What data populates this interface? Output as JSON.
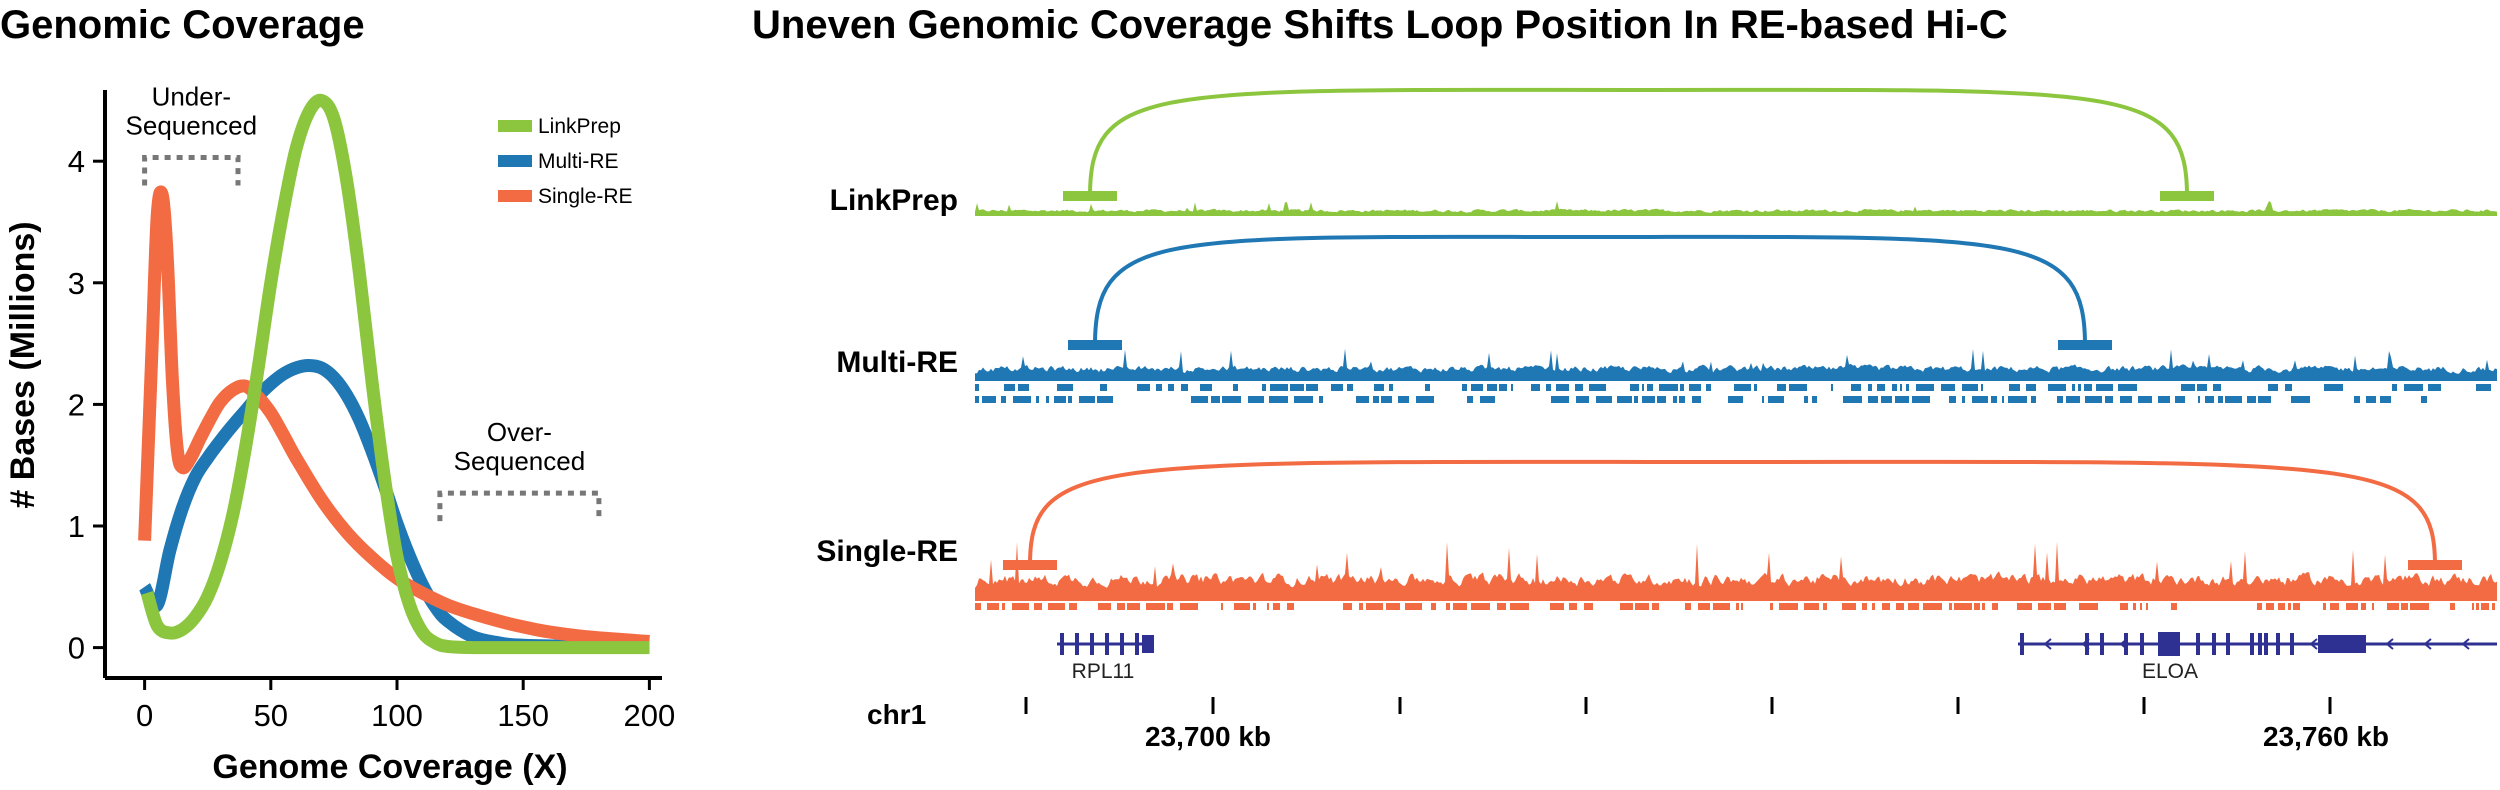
{
  "colors": {
    "linkprep": "#8cc63f",
    "multi_re": "#1f77b4",
    "single_re": "#f26b43",
    "gene": "#2e3192",
    "annotation": "#777777"
  },
  "chart_data": [
    {
      "type": "line",
      "title": "Genomic Coverage",
      "xlabel": "Genome Coverage (X)",
      "ylabel": "# Bases (Millions)",
      "xlim": [
        -5,
        205
      ],
      "ylim": [
        -0.25,
        4.75
      ],
      "xticks": [
        0,
        50,
        100,
        150,
        200
      ],
      "yticks": [
        0,
        1,
        2,
        3,
        4
      ],
      "legend_position": "top-right",
      "series": [
        {
          "name": "LinkPrep",
          "color_key": "linkprep",
          "x": [
            1,
            5,
            10,
            15,
            20,
            25,
            30,
            35,
            40,
            45,
            50,
            55,
            60,
            65,
            70,
            75,
            80,
            85,
            90,
            95,
            100,
            105,
            110,
            115,
            120,
            130,
            140,
            150,
            175,
            200
          ],
          "y": [
            0.45,
            0.18,
            0.12,
            0.15,
            0.25,
            0.42,
            0.7,
            1.1,
            1.65,
            2.3,
            3.0,
            3.6,
            4.1,
            4.4,
            4.5,
            4.35,
            3.85,
            3.1,
            2.2,
            1.4,
            0.75,
            0.35,
            0.13,
            0.04,
            0.01,
            0.0,
            0.0,
            0.0,
            0.0,
            0.0
          ]
        },
        {
          "name": "Multi-RE",
          "color_key": "multi_re",
          "x": [
            0,
            5,
            10,
            15,
            20,
            25,
            30,
            35,
            40,
            45,
            50,
            55,
            60,
            65,
            70,
            75,
            80,
            85,
            90,
            95,
            100,
            105,
            110,
            115,
            120,
            130,
            140,
            150,
            175,
            200
          ],
          "y": [
            0.5,
            0.35,
            0.8,
            1.15,
            1.4,
            1.56,
            1.7,
            1.83,
            1.95,
            2.07,
            2.17,
            2.25,
            2.3,
            2.32,
            2.3,
            2.22,
            2.08,
            1.88,
            1.62,
            1.33,
            1.02,
            0.75,
            0.52,
            0.34,
            0.22,
            0.09,
            0.04,
            0.02,
            0.01,
            0.01
          ]
        },
        {
          "name": "Single-RE",
          "color_key": "single_re",
          "x": [
            0,
            3,
            5,
            7,
            9,
            11,
            13,
            15,
            18,
            22,
            26,
            30,
            35,
            40,
            45,
            50,
            55,
            60,
            70,
            80,
            90,
            100,
            110,
            120,
            130,
            140,
            150,
            160,
            175,
            200
          ],
          "y": [
            0.88,
            2.5,
            3.55,
            3.72,
            3.2,
            2.2,
            1.62,
            1.48,
            1.55,
            1.72,
            1.88,
            2.02,
            2.12,
            2.15,
            2.06,
            1.93,
            1.75,
            1.56,
            1.22,
            0.95,
            0.74,
            0.57,
            0.45,
            0.35,
            0.28,
            0.22,
            0.17,
            0.13,
            0.09,
            0.05
          ]
        }
      ],
      "annotations": [
        {
          "lines": [
            "Under-",
            "Sequenced"
          ],
          "x_range": [
            0,
            37
          ],
          "y_level": 4.03
        },
        {
          "lines": [
            "Over-",
            "Sequenced"
          ],
          "x_range": [
            117,
            180
          ],
          "y_level": 1.27
        }
      ]
    },
    {
      "type": "genome_browser",
      "title": "Uneven Genomic Coverage Shifts Loop Position In RE-based Hi-C",
      "chromosome": "chr1",
      "tick_kb_labels": [
        "23,700 kb",
        "23,760 kb"
      ],
      "tracks": [
        {
          "name": "LinkPrep",
          "color_key": "linkprep",
          "loop_anchors_frac": [
            0.047,
            0.5
          ],
          "has_cut_sites": false
        },
        {
          "name": "Multi-RE",
          "color_key": "multi_re",
          "loop_anchors_frac": [
            0.047,
            0.45
          ],
          "has_cut_sites": true
        },
        {
          "name": "Single-RE",
          "color_key": "single_re",
          "loop_anchors_frac": [
            0.022,
            0.945
          ],
          "has_cut_sites": true
        }
      ],
      "genes": [
        {
          "name": "RPL11",
          "start_frac": 0.032,
          "end_frac": 0.072
        },
        {
          "name": "ELOA",
          "start_frac": 0.42,
          "end_frac": 1.0
        }
      ]
    }
  ]
}
